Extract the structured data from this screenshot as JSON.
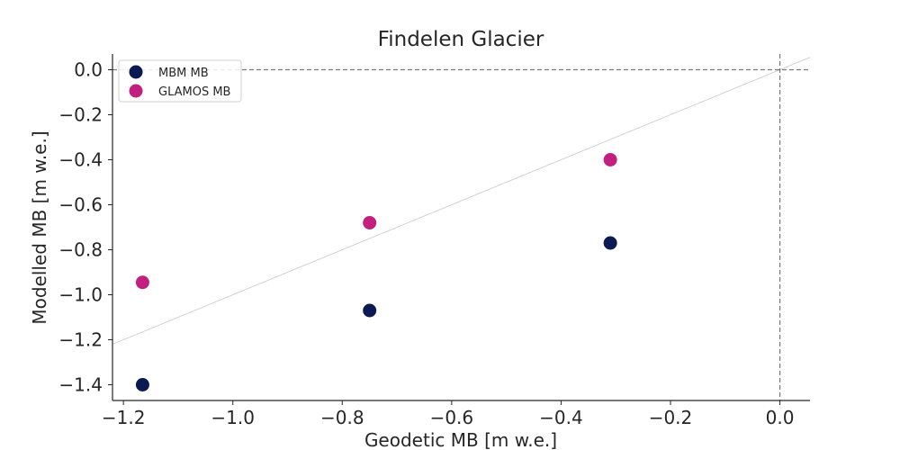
{
  "chart_data": {
    "type": "scatter",
    "title": "Findelen Glacier",
    "xlabel": "Geodetic MB [m w.e.]",
    "ylabel": "Modelled MB [m w.e.]",
    "xlim": [
      -1.22,
      0.055
    ],
    "ylim": [
      -1.47,
      0.07
    ],
    "xticks": [
      -1.2,
      -1.0,
      -0.8,
      -0.6,
      -0.4,
      -0.2,
      0.0
    ],
    "yticks": [
      -1.4,
      -1.2,
      -1.0,
      -0.8,
      -0.6,
      -0.4,
      -0.2,
      0.0
    ],
    "xtick_labels": [
      "−1.2",
      "−1.0",
      "−0.8",
      "−0.6",
      "−0.4",
      "−0.2",
      "0.0"
    ],
    "ytick_labels": [
      "−1.4",
      "−1.2",
      "−1.0",
      "−0.8",
      "−0.6",
      "−0.4",
      "−0.2",
      "0.0"
    ],
    "grid": false,
    "legend_position": "top-left",
    "reference_lines": {
      "identity_line": true,
      "zero_lines": true
    },
    "series": [
      {
        "name": "MBM MB",
        "color": "#0b1a52",
        "x": [
          -1.165,
          -0.75,
          -0.31
        ],
        "y": [
          -1.4,
          -1.07,
          -0.77
        ]
      },
      {
        "name": "GLAMOS MB",
        "color": "#c2207e",
        "x": [
          -1.165,
          -0.75,
          -0.31
        ],
        "y": [
          -0.945,
          -0.68,
          -0.4
        ]
      }
    ]
  }
}
